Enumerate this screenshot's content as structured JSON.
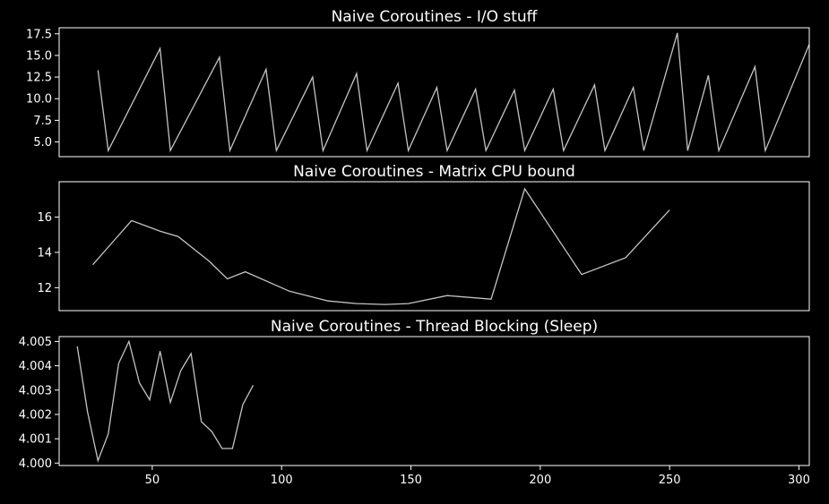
{
  "colors": {
    "background": "#000000",
    "foreground": "#ffffff",
    "line": "#c4c4c4"
  },
  "chart_data": [
    {
      "type": "line",
      "title": "Naive Coroutines - I/O stuff",
      "xlim": [
        14,
        304
      ],
      "ylim": [
        3.3,
        18.2
      ],
      "yticks": [
        {
          "v": 5.0,
          "label": "5.0"
        },
        {
          "v": 7.5,
          "label": "7.5"
        },
        {
          "v": 10.0,
          "label": "10.0"
        },
        {
          "v": 12.5,
          "label": "12.5"
        },
        {
          "v": 15.0,
          "label": "15.0"
        },
        {
          "v": 17.5,
          "label": "17.5"
        }
      ],
      "xticks": [],
      "x": [
        29,
        33,
        53,
        57,
        76,
        80,
        94,
        98,
        112,
        116,
        129,
        133,
        145,
        149,
        160,
        164,
        175,
        179,
        190,
        194,
        205,
        209,
        221,
        225,
        236,
        240,
        253,
        257,
        265,
        269,
        283,
        287,
        304
      ],
      "y": [
        13.3,
        4.0,
        15.8,
        4.0,
        14.8,
        4.0,
        13.4,
        4.0,
        12.5,
        4.0,
        12.9,
        4.0,
        11.8,
        4.0,
        11.3,
        4.0,
        11.1,
        4.0,
        11.0,
        4.0,
        11.1,
        4.0,
        11.6,
        4.0,
        11.3,
        4.0,
        17.6,
        4.0,
        12.7,
        4.0,
        13.7,
        4.0,
        16.3
      ]
    },
    {
      "type": "line",
      "title": "Naive Coroutines - Matrix CPU bound",
      "xlim": [
        14,
        304
      ],
      "ylim": [
        10.7,
        18.0
      ],
      "yticks": [
        {
          "v": 12,
          "label": "12"
        },
        {
          "v": 14,
          "label": "14"
        },
        {
          "v": 16,
          "label": "16"
        }
      ],
      "xticks": [],
      "x": [
        27,
        42,
        53,
        60,
        72,
        79,
        86,
        103,
        118,
        129,
        140,
        149,
        164,
        181,
        194,
        216,
        233,
        250
      ],
      "y": [
        13.3,
        15.8,
        15.2,
        14.9,
        13.5,
        12.5,
        12.9,
        11.8,
        11.25,
        11.1,
        11.05,
        11.1,
        11.55,
        11.35,
        17.6,
        12.75,
        13.7,
        16.4
      ]
    },
    {
      "type": "line",
      "title": "Naive Coroutines - Thread Blocking (Sleep)",
      "xlim": [
        14,
        304
      ],
      "ylim": [
        3.9999,
        4.0052
      ],
      "yticks": [
        {
          "v": 4.0,
          "label": "4.000"
        },
        {
          "v": 4.001,
          "label": "4.001"
        },
        {
          "v": 4.002,
          "label": "4.002"
        },
        {
          "v": 4.003,
          "label": "4.003"
        },
        {
          "v": 4.004,
          "label": "4.004"
        },
        {
          "v": 4.005,
          "label": "4.005"
        }
      ],
      "xticks": [
        {
          "v": 50,
          "label": "50"
        },
        {
          "v": 100,
          "label": "100"
        },
        {
          "v": 150,
          "label": "150"
        },
        {
          "v": 200,
          "label": "200"
        },
        {
          "v": 250,
          "label": "250"
        },
        {
          "v": 300,
          "label": "300"
        }
      ],
      "x": [
        21,
        25,
        29,
        33,
        37,
        41,
        45,
        49,
        53,
        57,
        61,
        65,
        69,
        73,
        77,
        81,
        85,
        89
      ],
      "y": [
        4.0048,
        4.0021,
        4.0001,
        4.0012,
        4.0041,
        4.005,
        4.0033,
        4.0026,
        4.0046,
        4.0025,
        4.0038,
        4.0045,
        4.0017,
        4.0013,
        4.0006,
        4.0006,
        4.0024,
        4.0032
      ]
    }
  ]
}
